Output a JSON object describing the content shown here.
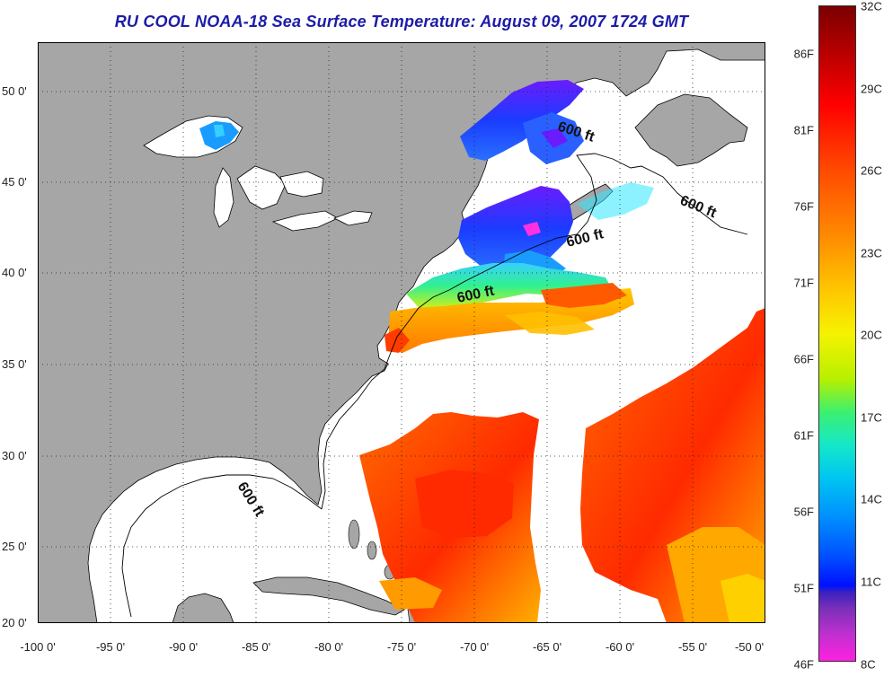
{
  "title": "RU COOL  NOAA-18  Sea Surface Temperature:  August 09, 2007 1724 GMT",
  "map": {
    "lat_labels": [
      "50 0'",
      "45 0'",
      "40 0'",
      "35 0'",
      "30 0'",
      "25 0'",
      "20 0'"
    ],
    "lon_labels": [
      "-100 0'",
      "-95 0'",
      "-90 0'",
      "-85 0'",
      "-80 0'",
      "-75 0'",
      "-70 0'",
      "-65 0'",
      "-60 0'",
      "-55 0'",
      "-50 0'"
    ],
    "contour_label": "600 ft",
    "colors": {
      "land": "#a6a6a6",
      "no_data": "#ffffff",
      "gridline": "#222222",
      "coastline": "#000000"
    }
  },
  "colorbar": {
    "celsius_labels": [
      "32C",
      "29C",
      "26C",
      "23C",
      "20C",
      "17C",
      "14C",
      "11C",
      "8C"
    ],
    "fahrenheit_labels": [
      "86F",
      "81F",
      "76F",
      "71F",
      "66F",
      "61F",
      "56F",
      "51F",
      "46F"
    ],
    "range_c": [
      8,
      32
    ],
    "range_f": [
      46,
      90
    ]
  }
}
